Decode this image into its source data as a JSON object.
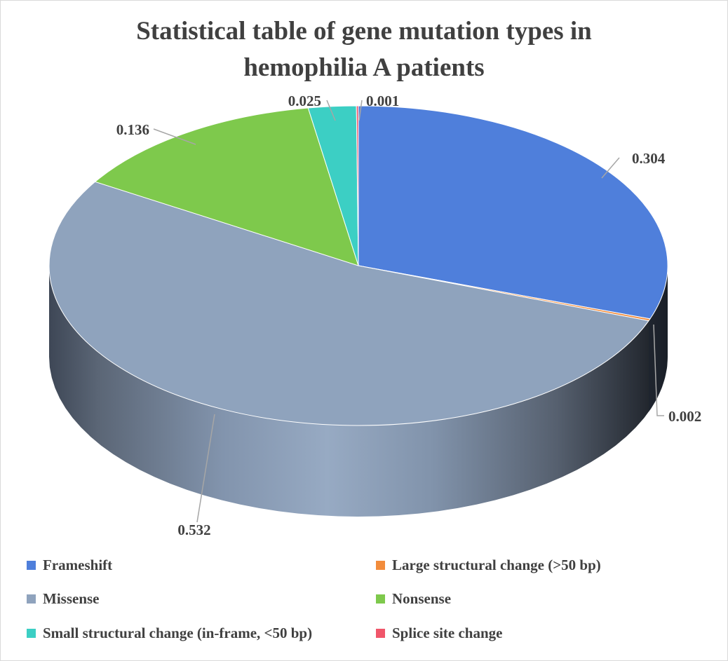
{
  "chart_data": {
    "type": "pie",
    "title": "Statistical table of gene mutation types in hemophilia A patients",
    "title_lines": [
      "Statistical table of gene mutation types in",
      "hemophilia A patients"
    ],
    "style": "3d",
    "legend_position": "bottom",
    "slices": [
      {
        "label": "Frameshift",
        "value": 0.304,
        "data_label": "0.304",
        "color": "#4f7fdb"
      },
      {
        "label": "Large structural change (>50 bp)",
        "value": 0.002,
        "data_label": "0.002",
        "color": "#f28c3c"
      },
      {
        "label": "Missense",
        "value": 0.532,
        "data_label": "0.532",
        "color": "#8fa3bd"
      },
      {
        "label": "Nonsense",
        "value": 0.136,
        "data_label": "0.136",
        "color": "#7ec94c"
      },
      {
        "label": "Small structural change (in-frame, <50 bp)",
        "value": 0.025,
        "data_label": "0.025",
        "color": "#3ccfc4"
      },
      {
        "label": "Splice site change",
        "value": 0.001,
        "data_label": "0.001",
        "color": "#f0566a"
      }
    ]
  }
}
